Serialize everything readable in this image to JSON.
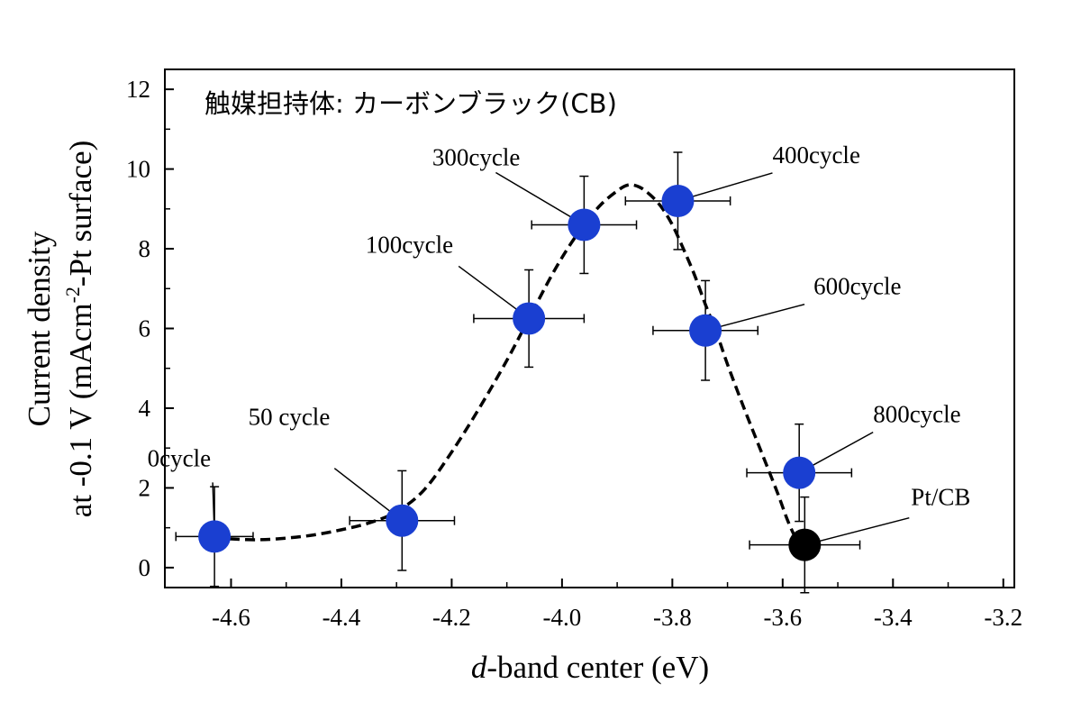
{
  "chart_data": {
    "type": "scatter",
    "annotation_title": "触媒担持体: カーボンブラック(CB)",
    "xlabel": {
      "italic": "d",
      "rest": "-band center (eV)"
    },
    "ylabel": {
      "line1": "Current density",
      "line2_pre": "at -0.1 V (mAcm",
      "line2_sup": "-2",
      "line2_post": "-Pt surface)"
    },
    "xlim": [
      -4.72,
      -3.18
    ],
    "ylim": [
      -0.5,
      12.5
    ],
    "xticks": [
      -4.6,
      -4.4,
      -4.2,
      -4.0,
      -3.8,
      -3.6,
      -3.4,
      -3.2
    ],
    "xtick_labels": [
      "-4.6",
      "-4.4",
      "-4.2",
      "-4.0",
      "-3.8",
      "-3.6",
      "-3.4",
      "-3.2"
    ],
    "yticks": [
      0,
      2,
      4,
      6,
      8,
      10,
      12
    ],
    "ytick_labels": [
      "0",
      "2",
      "4",
      "6",
      "8",
      "10",
      "12"
    ],
    "grid": false,
    "legend": "none",
    "colors": {
      "blue": "#1a3fd1",
      "black": "#000000"
    },
    "points": [
      {
        "label": "0cycle",
        "x": -4.63,
        "y": 0.78,
        "xerr": 0.07,
        "yerr": 1.25,
        "color": "blue"
      },
      {
        "label": "50 cycle",
        "x": -4.29,
        "y": 1.18,
        "xerr": 0.095,
        "yerr": 1.25,
        "color": "blue"
      },
      {
        "label": "100cycle",
        "x": -4.06,
        "y": 6.25,
        "xerr": 0.1,
        "yerr": 1.22,
        "color": "blue"
      },
      {
        "label": "300cycle",
        "x": -3.96,
        "y": 8.6,
        "xerr": 0.095,
        "yerr": 1.22,
        "color": "blue"
      },
      {
        "label": "400cycle",
        "x": -3.79,
        "y": 9.2,
        "xerr": 0.095,
        "yerr": 1.22,
        "color": "blue"
      },
      {
        "label": "600cycle",
        "x": -3.74,
        "y": 5.95,
        "xerr": 0.095,
        "yerr": 1.25,
        "color": "blue"
      },
      {
        "label": "800cycle",
        "x": -3.57,
        "y": 2.38,
        "xerr": 0.095,
        "yerr": 1.22,
        "color": "blue"
      },
      {
        "label": "Pt/CB",
        "x": -3.56,
        "y": 0.57,
        "xerr": 0.1,
        "yerr": 1.2,
        "color": "black"
      }
    ],
    "trend_curve": {
      "style": "dashed",
      "x": [
        -4.63,
        -4.6,
        -4.55,
        -4.5,
        -4.45,
        -4.4,
        -4.35,
        -4.3,
        -4.25,
        -4.2,
        -4.15,
        -4.1,
        -4.06,
        -4.02,
        -3.99,
        -3.96,
        -3.93,
        -3.9,
        -3.88,
        -3.86,
        -3.84,
        -3.82,
        -3.8,
        -3.78,
        -3.76,
        -3.74,
        -3.72,
        -3.7,
        -3.67,
        -3.64,
        -3.61,
        -3.59,
        -3.57
      ],
      "y": [
        0.75,
        0.72,
        0.7,
        0.74,
        0.82,
        0.95,
        1.12,
        1.4,
        1.95,
        2.9,
        4.0,
        5.2,
        6.25,
        7.3,
        8.0,
        8.6,
        9.1,
        9.45,
        9.6,
        9.55,
        9.35,
        9.05,
        8.6,
        8.0,
        7.35,
        6.6,
        5.9,
        5.1,
        4.0,
        2.95,
        1.9,
        1.15,
        0.55
      ]
    }
  }
}
